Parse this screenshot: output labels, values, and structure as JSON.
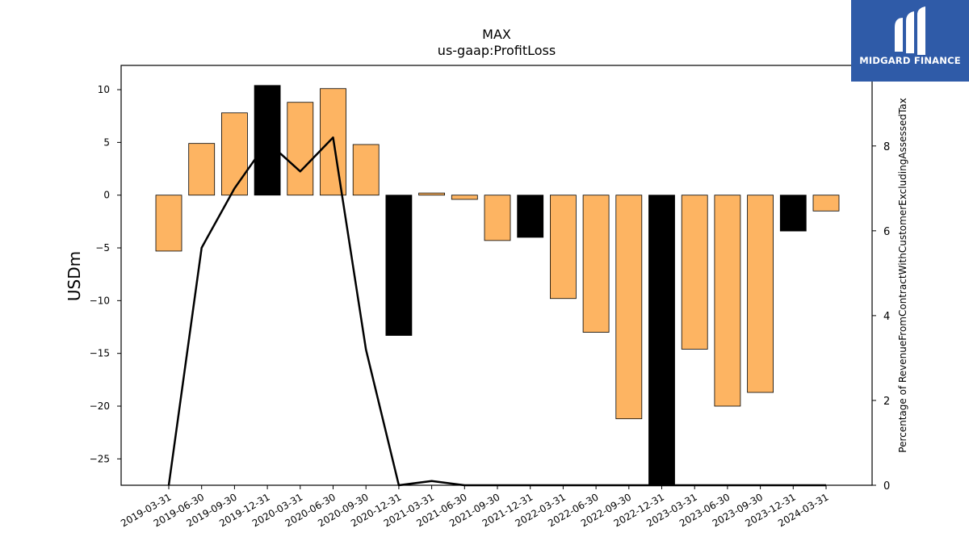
{
  "chart_data": {
    "type": "bar",
    "title": "MAX",
    "subtitle": "us-gaap:ProfitLoss",
    "ylabel": "USDm",
    "y2label": "Percentage of RevenueFromContractWithCustomerExcludingAssessedTax",
    "ylim": [
      -27.5,
      12.3
    ],
    "y2lim": [
      0,
      9.9
    ],
    "yticks": [
      10,
      5,
      0,
      -5,
      -10,
      -15,
      -20,
      -25
    ],
    "y2ticks": [
      0,
      2,
      4,
      6,
      8
    ],
    "categories": [
      "2019-03-31",
      "2019-06-30",
      "2019-09-30",
      "2019-12-31",
      "2020-03-31",
      "2020-06-30",
      "2020-09-30",
      "2020-12-31",
      "2021-03-31",
      "2021-06-30",
      "2021-09-30",
      "2021-12-31",
      "2022-03-31",
      "2022-06-30",
      "2022-09-30",
      "2022-12-31",
      "2023-03-31",
      "2023-06-30",
      "2023-09-30",
      "2023-12-31",
      "2024-03-31"
    ],
    "series": [
      {
        "type": "bar",
        "axis": "left",
        "values": [
          -5.3,
          4.9,
          7.8,
          10.4,
          8.8,
          10.1,
          4.8,
          -13.3,
          0.2,
          -0.4,
          -4.3,
          -4.0,
          -9.8,
          -13.0,
          -21.2,
          -27.5,
          -14.6,
          -20.0,
          -18.7,
          -3.4,
          -1.5
        ],
        "highlight": [
          false,
          false,
          false,
          true,
          false,
          false,
          false,
          true,
          false,
          false,
          false,
          true,
          false,
          false,
          false,
          true,
          false,
          false,
          false,
          true,
          false
        ]
      },
      {
        "type": "line",
        "axis": "right",
        "values": [
          0,
          5.6,
          7.0,
          8.1,
          7.4,
          8.2,
          3.2,
          0,
          0.1,
          0,
          0,
          0,
          0,
          0,
          0,
          0,
          0,
          0,
          0,
          0,
          0
        ]
      }
    ],
    "colors": {
      "bar": "#fdb462",
      "highlight": "#000000",
      "line": "#000000"
    },
    "grid": false
  },
  "logo": {
    "text": "MIDGARD FINANCE"
  }
}
